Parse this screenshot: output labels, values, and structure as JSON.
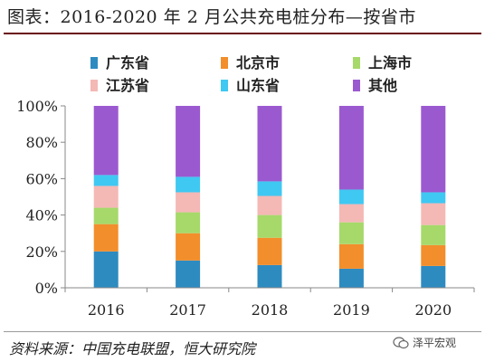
{
  "title": "图表：2016-2020 年 2 月公共充电桩分布—按省市",
  "source": "资料来源：中国充电联盟，恒大研究院",
  "watermark": "泽平宏观",
  "chart_data": {
    "type": "bar",
    "stacked": true,
    "percent": true,
    "categories": [
      "2016",
      "2017",
      "2018",
      "2019",
      "2020"
    ],
    "ylim": [
      0,
      100
    ],
    "yticks": [
      0,
      20,
      40,
      60,
      80,
      100
    ],
    "ytick_labels": [
      "0%",
      "20%",
      "40%",
      "60%",
      "80%",
      "100%"
    ],
    "legend_position": "top",
    "grid": false,
    "series": [
      {
        "name": "广东省",
        "color": "#2e8bc0",
        "values": [
          20,
          15,
          12.5,
          10.5,
          12
        ]
      },
      {
        "name": "北京市",
        "color": "#f28e2b",
        "values": [
          15,
          15,
          15,
          13.5,
          11.5
        ]
      },
      {
        "name": "上海市",
        "color": "#a6d96a",
        "values": [
          9,
          11.5,
          12.5,
          12,
          11
        ]
      },
      {
        "name": "江苏省",
        "color": "#f4b8b5",
        "values": [
          12,
          11,
          10.5,
          10,
          12
        ]
      },
      {
        "name": "山东省",
        "color": "#3fc8f2",
        "values": [
          6,
          8.5,
          8,
          8,
          6
        ]
      },
      {
        "name": "其他",
        "color": "#9b59d0",
        "values": [
          38,
          39,
          41.5,
          46,
          47.5
        ]
      }
    ]
  }
}
